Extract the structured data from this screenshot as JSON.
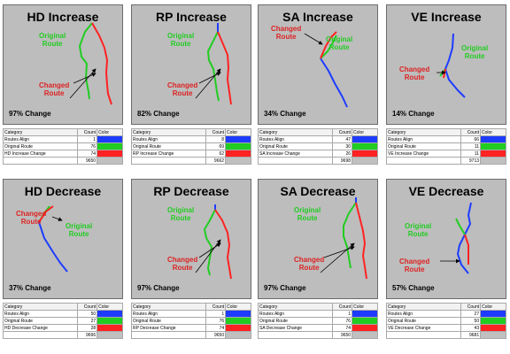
{
  "header": {
    "category": "Category",
    "count": "Count",
    "color": "Color"
  },
  "colors": {
    "align": "#1e3cff",
    "original": "#22cc22",
    "change": "#ff2222",
    "total": "#c0c0c0"
  },
  "panels": [
    {
      "title": "HD Increase",
      "change": "97% Change",
      "label_a": "Original\nRoute",
      "label_b": "Changed\nRoute",
      "rows": [
        {
          "category": "Routes Align",
          "count": "1"
        },
        {
          "category": "Original Route",
          "count": "76"
        },
        {
          "category": "HD Increase Change",
          "count": "74"
        },
        {
          "category": "",
          "count": "9650"
        }
      ]
    },
    {
      "title": "RP Increase",
      "change": "82% Change",
      "label_a": "Original\nRoute",
      "label_b": "Changed\nRoute",
      "rows": [
        {
          "category": "Routes Align",
          "count": "8"
        },
        {
          "category": "Original Route",
          "count": "69"
        },
        {
          "category": "RP Increase Change",
          "count": "62"
        },
        {
          "category": "",
          "count": "9662"
        }
      ]
    },
    {
      "title": "SA Increase",
      "change": "34% Change",
      "label_a": "Original\nRoute",
      "label_b": "Changed\nRoute",
      "rows": [
        {
          "category": "Routes Align",
          "count": "47"
        },
        {
          "category": "Original Route",
          "count": "30"
        },
        {
          "category": "SA Increase Change",
          "count": "26"
        },
        {
          "category": "",
          "count": "9698"
        }
      ]
    },
    {
      "title": "VE Increase",
      "change": "14% Change",
      "label_a": "Original\nRoute",
      "label_b": "Changed\nRoute",
      "rows": [
        {
          "category": "Routes Align",
          "count": "66"
        },
        {
          "category": "Original Route",
          "count": "11"
        },
        {
          "category": "VE Increase Change",
          "count": "11"
        },
        {
          "category": "",
          "count": "9713"
        }
      ]
    },
    {
      "title": "HD Decrease",
      "change": "37% Change",
      "label_a": "Original\nRoute",
      "label_b": "Changed\nRoute",
      "rows": [
        {
          "category": "Routes Align",
          "count": "50"
        },
        {
          "category": "Original Route",
          "count": "27"
        },
        {
          "category": "HD Decrease Change",
          "count": "28"
        },
        {
          "category": "",
          "count": "9696"
        }
      ]
    },
    {
      "title": "RP Decrease",
      "change": "97% Change",
      "label_a": "Original\nRoute",
      "label_b": "Changed\nRoute",
      "rows": [
        {
          "category": "Routes Align",
          "count": "1"
        },
        {
          "category": "Original Route",
          "count": "76"
        },
        {
          "category": "RP Decrease Change",
          "count": "74"
        },
        {
          "category": "",
          "count": "9650"
        }
      ]
    },
    {
      "title": "SA Decrease",
      "change": "97% Change",
      "label_a": "Original\nRoute",
      "label_b": "Changed\nRoute",
      "rows": [
        {
          "category": "Routes Align",
          "count": "1"
        },
        {
          "category": "Original Route",
          "count": "76"
        },
        {
          "category": "SA Decrease Change",
          "count": "74"
        },
        {
          "category": "",
          "count": "9650"
        }
      ]
    },
    {
      "title": "VE Decrease",
      "change": "57% Change",
      "label_a": "Original\nRoute",
      "label_b": "Changed\nRoute",
      "rows": [
        {
          "category": "Routes Align",
          "count": "27"
        },
        {
          "category": "Original Route",
          "count": "50"
        },
        {
          "category": "VE Decrease Change",
          "count": "43"
        },
        {
          "category": "",
          "count": "9681"
        }
      ]
    }
  ]
}
